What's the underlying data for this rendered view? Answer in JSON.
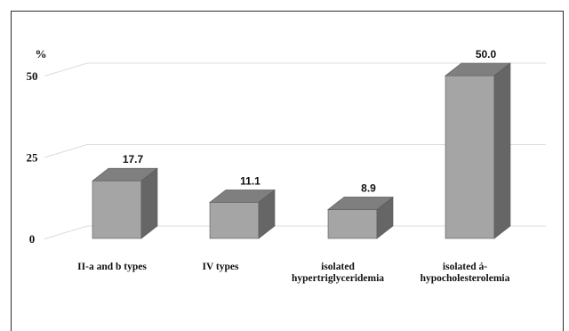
{
  "chart_data": {
    "type": "bar",
    "style": "3d-column",
    "y_unit": "%",
    "ylim": [
      0,
      50
    ],
    "yticks": [
      0,
      25,
      50
    ],
    "grid": true,
    "categories": [
      [
        "II-a and b types"
      ],
      [
        "IV types"
      ],
      [
        "isolated",
        "hypertriglyceridemia"
      ],
      [
        "isolated á-",
        "hypocholesterolemia"
      ]
    ],
    "values": [
      17.7,
      11.1,
      8.9,
      50.0
    ],
    "data_labels": [
      "17.7",
      "11.1",
      "8.9",
      "50.0"
    ],
    "colors": {
      "front": "#a5a5a5",
      "top": "#7f7f7f",
      "side": "#666666",
      "edge": "#5a5a5a",
      "grid": "#dcdcdc"
    }
  }
}
